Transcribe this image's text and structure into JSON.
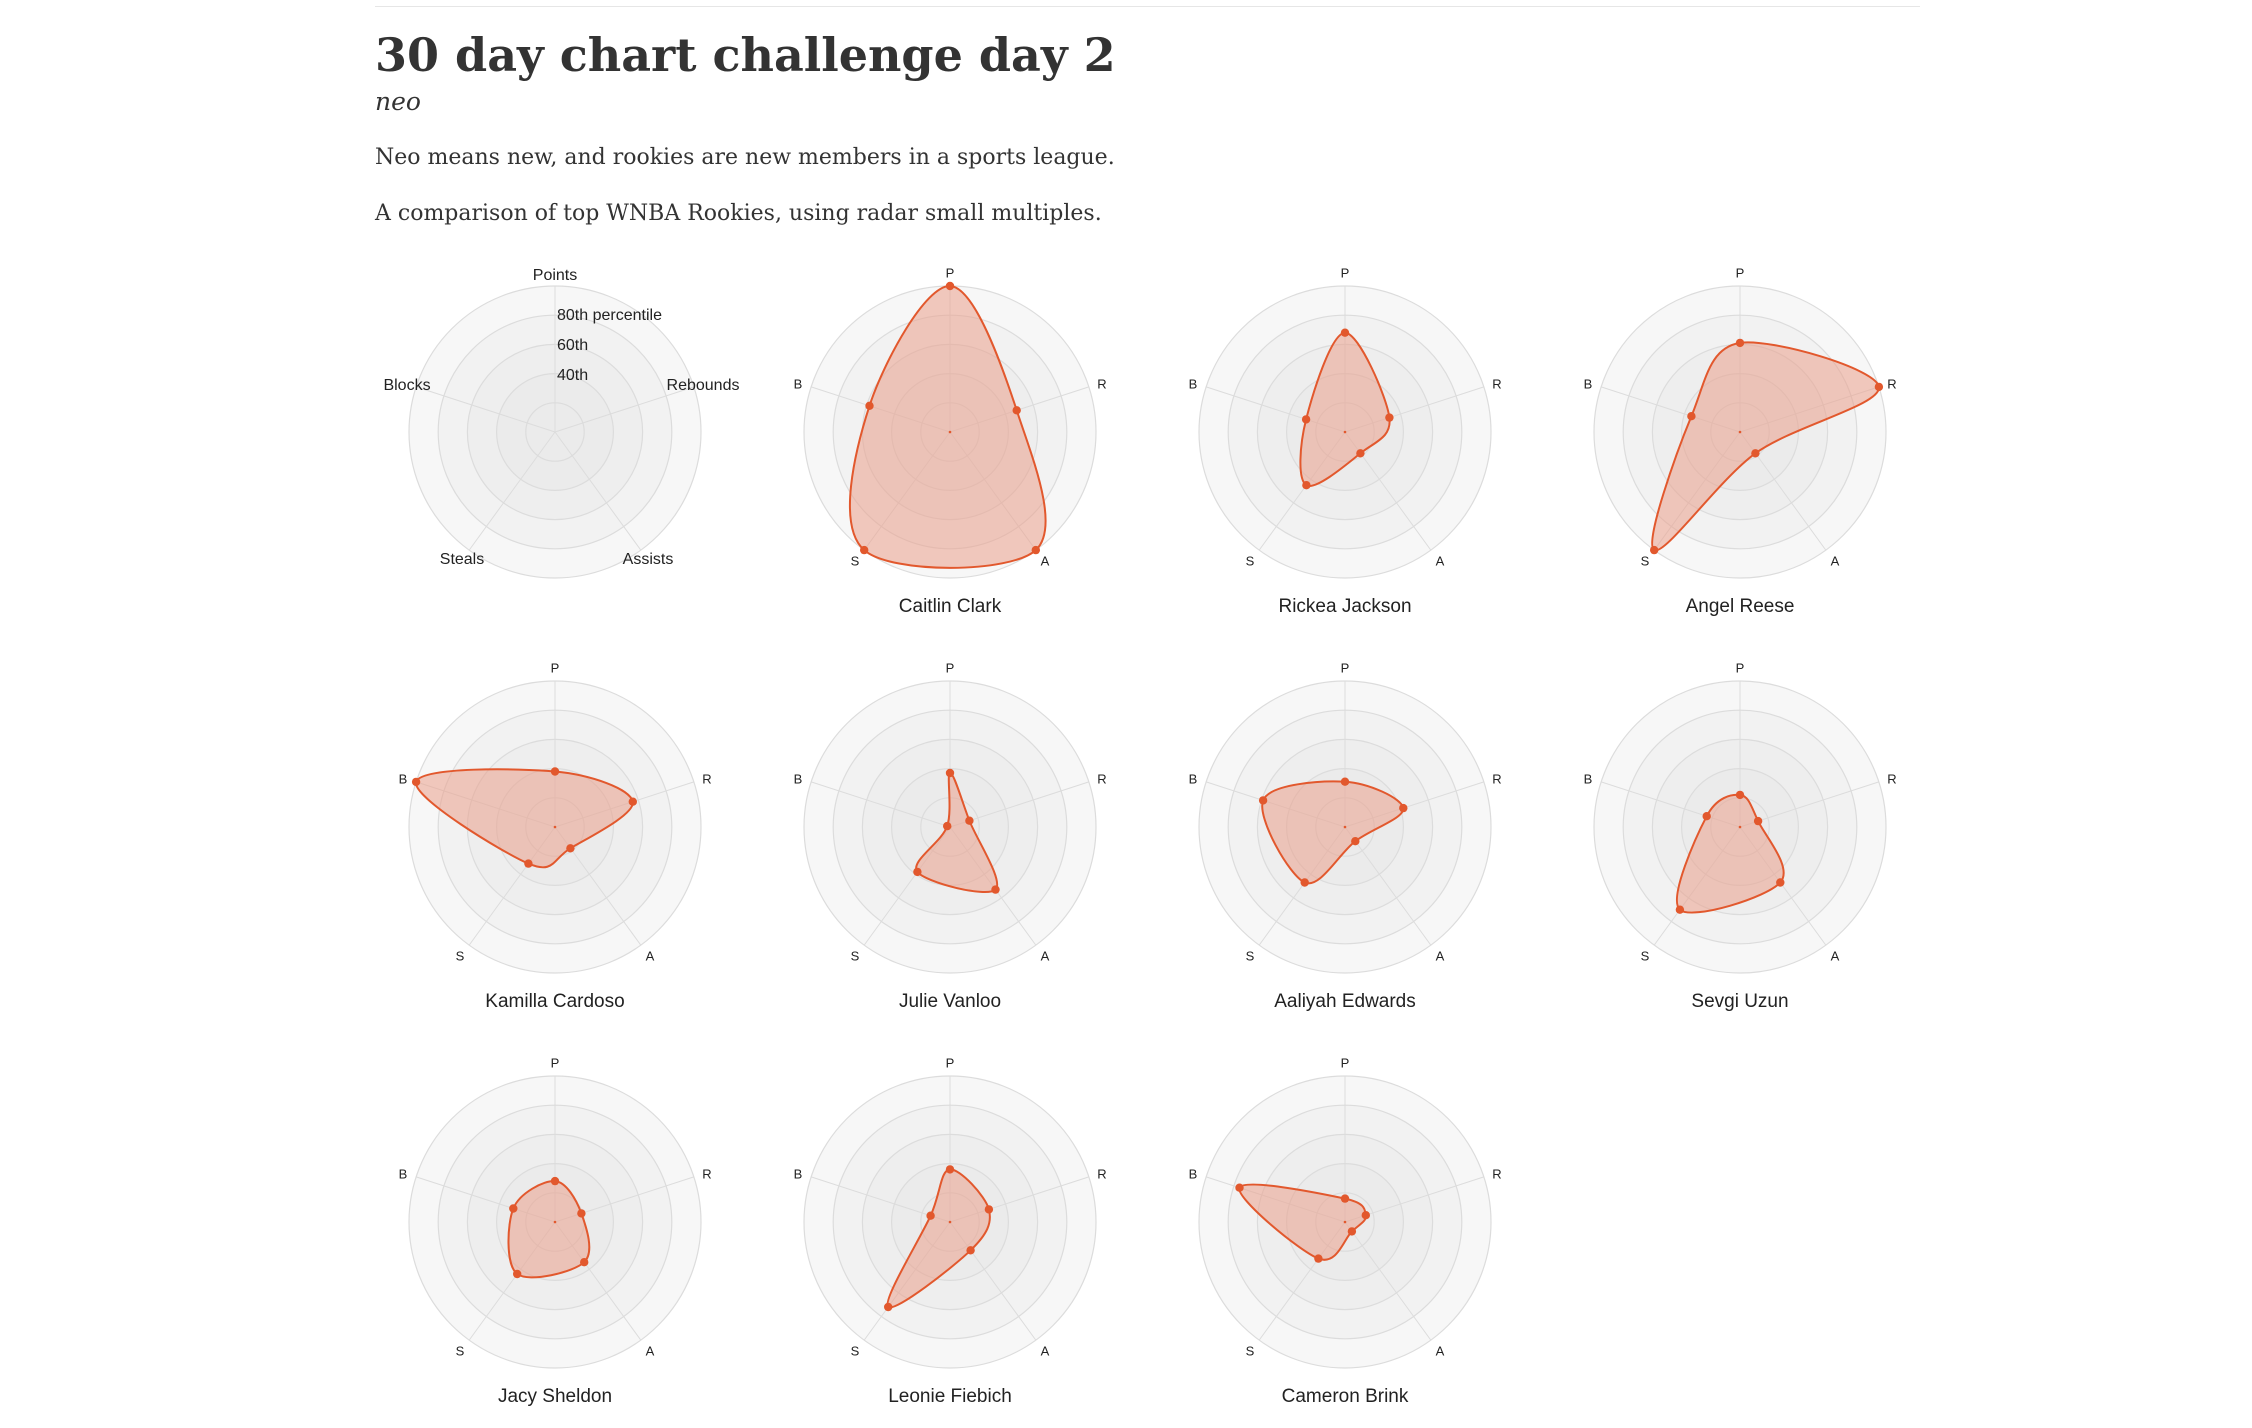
{
  "header": {
    "title": "30 day chart challenge day 2",
    "subtitle": "neo",
    "paragraphs": [
      "Neo means new, and rookies are new members in a sports league.",
      "A comparison of top WNBA Rookies, using radar small multiples."
    ]
  },
  "chart_data": {
    "type": "radar",
    "value_unit": "percentile",
    "rlim": [
      0,
      100
    ],
    "ring_levels": [
      20,
      40,
      60,
      80,
      100
    ],
    "axes": [
      "P",
      "R",
      "A",
      "S",
      "B"
    ],
    "legend": {
      "axis_labels": [
        "Points",
        "Rebounds",
        "Assists",
        "Steals",
        "Blocks"
      ],
      "ring_labels": [
        "80th percentile",
        "60th",
        "40th"
      ]
    },
    "colors": {
      "series_stroke": "#e2582d",
      "series_fill": "#eba08c",
      "ring_fill_outer": "#f7f7f7",
      "ring_fill_inner": "#ebebeb",
      "grid": "#dcdcdc"
    },
    "series": [
      {
        "name": "Caitlin Clark",
        "values": [
          100,
          48,
          100,
          100,
          58
        ]
      },
      {
        "name": "Rickea Jackson",
        "values": [
          68,
          32,
          18,
          45,
          28
        ]
      },
      {
        "name": "Angel Reese",
        "values": [
          61,
          100,
          18,
          100,
          35
        ]
      },
      {
        "name": "Kamilla Cardoso",
        "values": [
          38,
          56,
          18,
          31,
          100
        ]
      },
      {
        "name": "Julie Vanloo",
        "values": [
          37,
          14,
          53,
          38,
          2
        ]
      },
      {
        "name": "Aaliyah Edwards",
        "values": [
          31,
          42,
          12,
          47,
          59
        ]
      },
      {
        "name": "Sevgi Uzun",
        "values": [
          22,
          13,
          47,
          70,
          24
        ]
      },
      {
        "name": "Jacy Sheldon",
        "values": [
          28,
          19,
          34,
          44,
          30
        ]
      },
      {
        "name": "Leonie Fiebich",
        "values": [
          36,
          28,
          24,
          72,
          14
        ]
      },
      {
        "name": "Cameron Brink",
        "values": [
          16,
          15,
          8,
          31,
          76
        ]
      }
    ]
  }
}
